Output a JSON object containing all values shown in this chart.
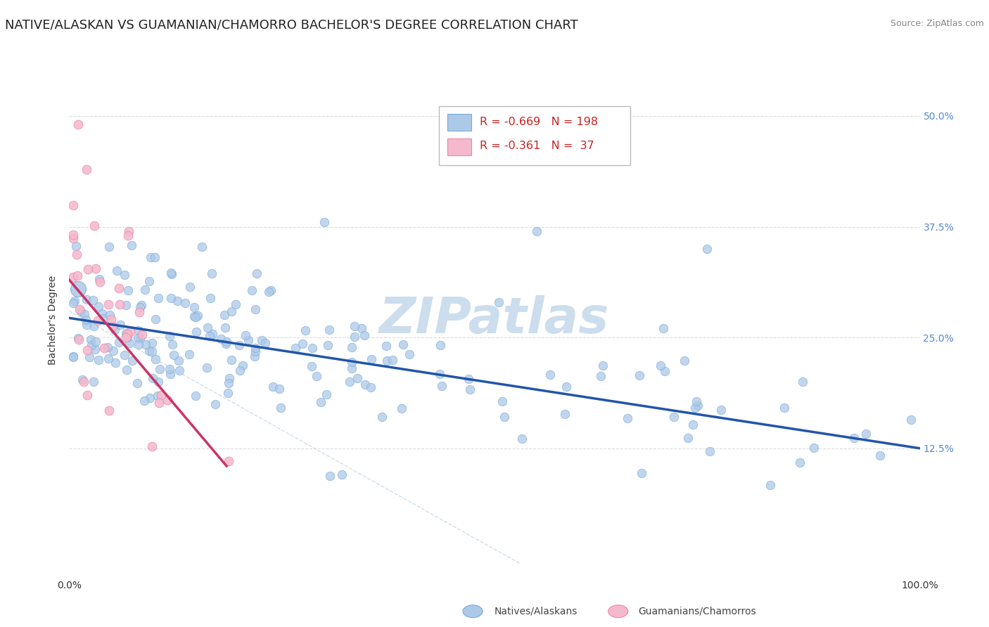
{
  "title": "NATIVE/ALASKAN VS GUAMANIAN/CHAMORRO BACHELOR'S DEGREE CORRELATION CHART",
  "source": "Source: ZipAtlas.com",
  "ylabel": "Bachelor's Degree",
  "xlim": [
    0.0,
    1.0
  ],
  "ylim": [
    -0.02,
    0.56
  ],
  "yticks": [
    0.0,
    0.125,
    0.25,
    0.375,
    0.5
  ],
  "ytick_labels": [
    "",
    "12.5%",
    "25.0%",
    "37.5%",
    "50.0%"
  ],
  "xtick_labels": [
    "0.0%",
    "100.0%"
  ],
  "blue_color": "#adc9e8",
  "pink_color": "#f5b8cc",
  "blue_edge_color": "#7aabda",
  "pink_edge_color": "#e888aa",
  "blue_line_color": "#2255aa",
  "pink_line_color": "#cc3366",
  "blue_R": -0.669,
  "blue_N": 198,
  "pink_R": -0.361,
  "pink_N": 37,
  "blue_line_start_x": 0.0,
  "blue_line_start_y": 0.272,
  "blue_line_end_x": 1.0,
  "blue_line_end_y": 0.125,
  "pink_line_start_x": 0.0,
  "pink_line_start_y": 0.315,
  "pink_line_end_x": 0.185,
  "pink_line_end_y": 0.105,
  "background_color": "#ffffff",
  "grid_color": "#dddddd",
  "watermark_text": "ZIPatlas",
  "watermark_color": "#ccdded",
  "legend_label_blue": "Natives/Alaskans",
  "legend_label_pink": "Guamanians/Chamorros",
  "title_fontsize": 13,
  "axis_label_fontsize": 10,
  "tick_fontsize": 10,
  "right_tick_color": "#5588cc",
  "legend_text_color": "#cc2222"
}
